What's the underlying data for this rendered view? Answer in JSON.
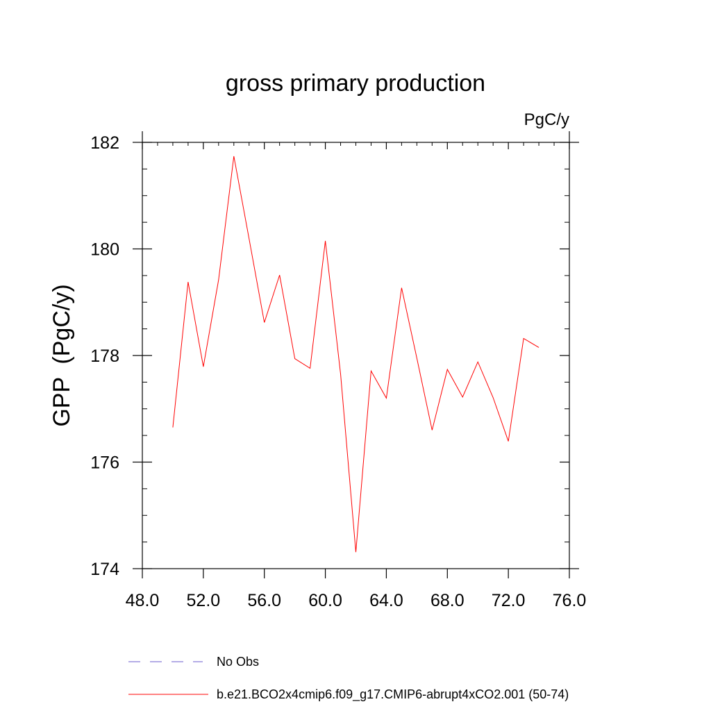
{
  "chart_data": {
    "type": "line",
    "title": "gross primary production",
    "units_label": "PgC/y",
    "ylabel": "GPP  (PgC/y)",
    "xlabel": "",
    "xlim": [
      48,
      76
    ],
    "ylim": [
      174,
      182
    ],
    "x_ticks": [
      48,
      52,
      56,
      60,
      64,
      68,
      72,
      76
    ],
    "x_tick_labels": [
      "48.0",
      "52.0",
      "56.0",
      "60.0",
      "64.0",
      "68.0",
      "72.0",
      "76.0"
    ],
    "y_ticks": [
      174,
      176,
      178,
      180,
      182
    ],
    "y_tick_labels": [
      "174",
      "176",
      "178",
      "180",
      "182"
    ],
    "y_minor_step": 0.5,
    "x_minor_step": 1,
    "grid": false,
    "legend_placement": "bottom-left, below plot",
    "legend": [
      {
        "label": "No Obs",
        "color": "#6a5acd",
        "style": "dashed"
      },
      {
        "label": "b.e21.BCO2x4cmip6.f09_g17.CMIP6-abrupt4xCO2.001 (50-74)",
        "color": "#ff0000",
        "style": "solid"
      }
    ],
    "series": [
      {
        "name": "b.e21.BCO2x4cmip6.f09_g17.CMIP6-abrupt4xCO2.001 (50-74)",
        "color": "#ff0000",
        "x": [
          50,
          51,
          52,
          53,
          54,
          55,
          56,
          57,
          58,
          59,
          60,
          61,
          62,
          63,
          64,
          65,
          66,
          67,
          68,
          69,
          70,
          71,
          72,
          73,
          74
        ],
        "y": [
          176.65,
          179.38,
          177.79,
          179.42,
          181.74,
          180.19,
          178.62,
          179.51,
          177.94,
          177.76,
          180.15,
          177.65,
          174.31,
          177.71,
          177.2,
          179.27,
          177.95,
          176.6,
          177.74,
          177.22,
          177.88,
          177.21,
          176.39,
          178.32,
          178.15
        ]
      }
    ]
  }
}
